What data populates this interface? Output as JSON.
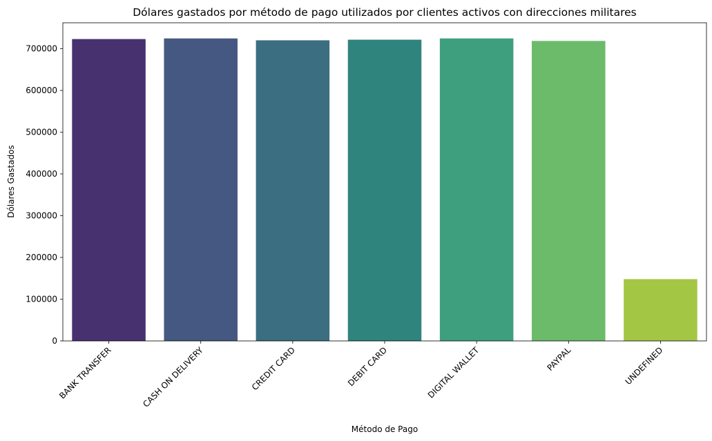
{
  "chart_data": {
    "type": "bar",
    "title": "Dólares gastados por método de pago utilizados por clientes activos con direcciones militares",
    "xlabel": "Método de Pago",
    "ylabel": "Dólares Gastados",
    "categories": [
      "BANK TRANSFER",
      "CASH ON DELIVERY",
      "CREDIT CARD",
      "DEBIT CARD",
      "DIGITAL WALLET",
      "PAYPAL",
      "UNDEFINED"
    ],
    "values": [
      723000,
      724500,
      720000,
      721500,
      724500,
      718500,
      148000
    ],
    "colors": [
      "#48316f",
      "#455882",
      "#3a6e80",
      "#2f847d",
      "#3e9f7e",
      "#6cbb6b",
      "#a4c645"
    ],
    "ylim": [
      0,
      762000
    ],
    "yticks": [
      "0",
      "100000",
      "200000",
      "300000",
      "400000",
      "500000",
      "600000",
      "700000"
    ],
    "grid": false,
    "legend": "none"
  }
}
